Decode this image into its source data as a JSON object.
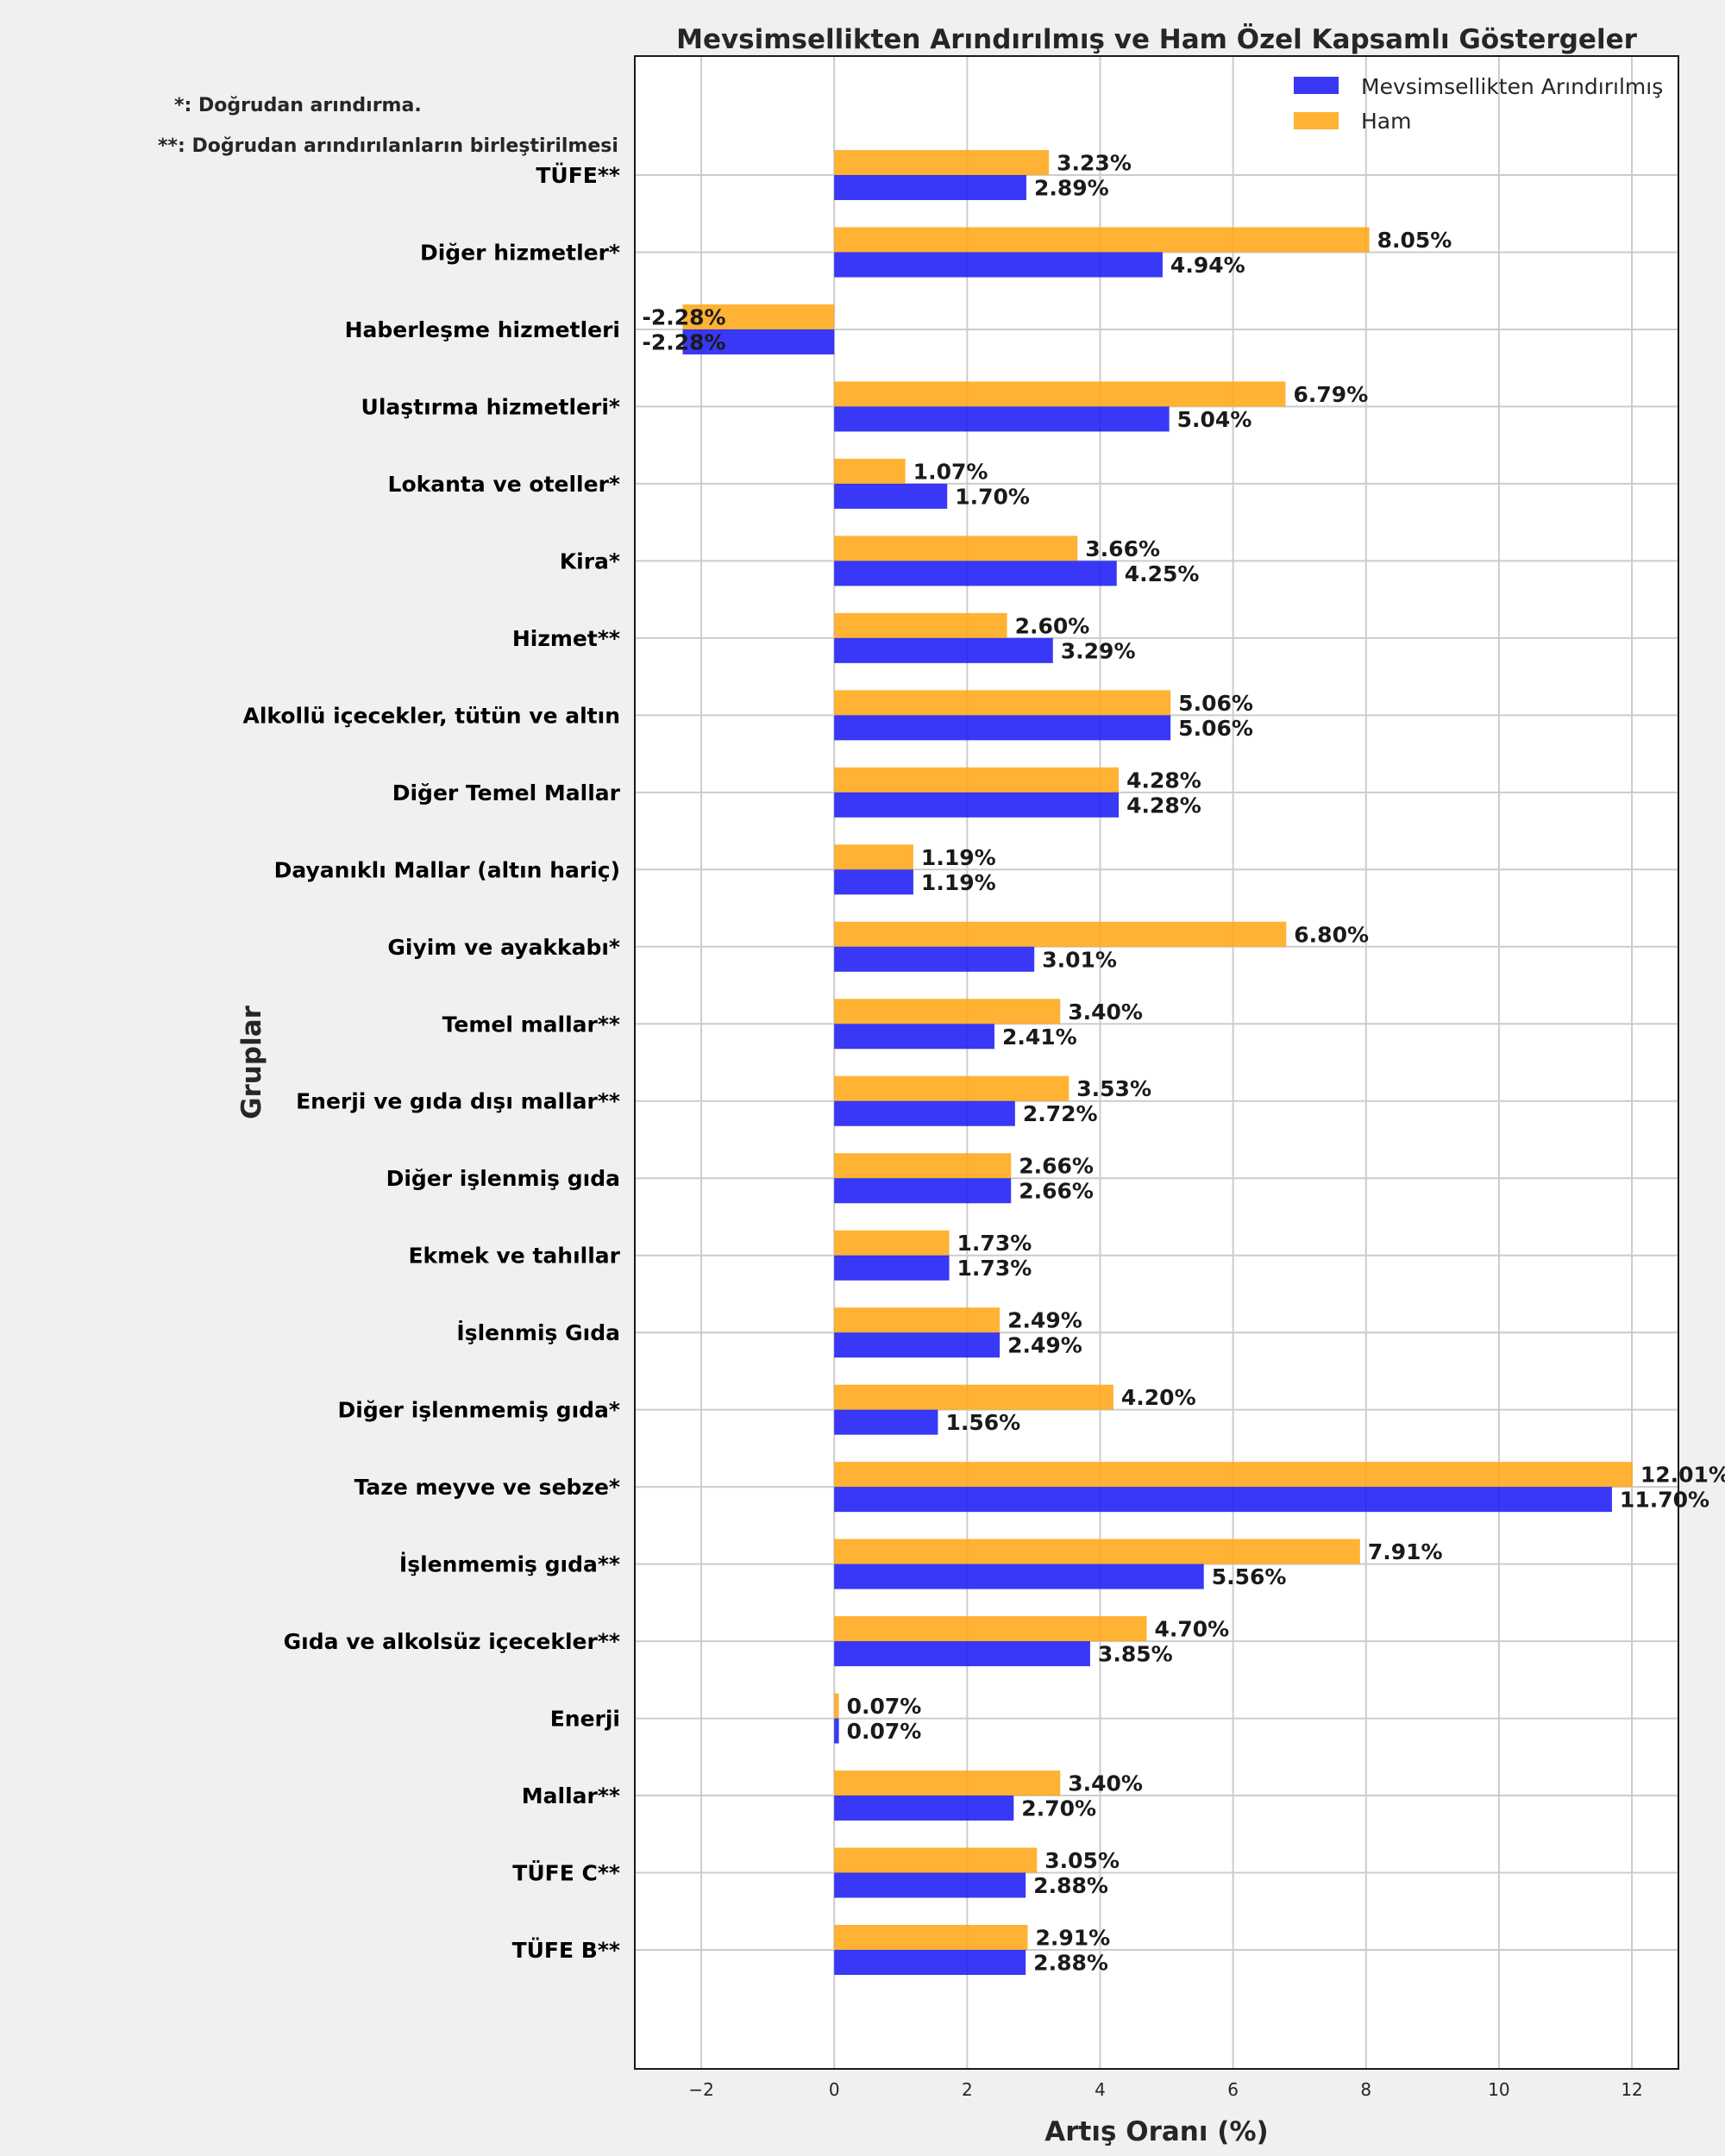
{
  "chart_data": {
    "type": "bar",
    "orientation": "horizontal",
    "title": "Mevsimsellikten Arındırılmış ve Ham Özel Kapsamlı Göstergeler",
    "xlabel": "Artış Oranı (%)",
    "ylabel": "Gruplar",
    "xlim": [
      -3.0,
      12.7
    ],
    "xticks": [
      -2,
      0,
      2,
      4,
      6,
      8,
      10,
      12
    ],
    "xtick_labels": [
      "−2",
      "0",
      "2",
      "4",
      "6",
      "8",
      "10",
      "12"
    ],
    "grid": true,
    "legend_position": "top-right",
    "notes": [
      "*: Doğrudan arındırma.",
      "**: Doğrudan arındırılanların birleştirilmesi"
    ],
    "categories": [
      "TÜFE**",
      "Diğer hizmetler*",
      "Haberleşme hizmetleri",
      "Ulaştırma hizmetleri*",
      "Lokanta ve oteller*",
      "Kira*",
      "Hizmet**",
      "Alkollü içecekler, tütün ve altın",
      "Diğer Temel Mallar",
      "Dayanıklı Mallar (altın hariç)",
      "Giyim ve ayakkabı*",
      "Temel mallar**",
      "Enerji ve gıda dışı mallar**",
      "Diğer işlenmiş gıda",
      "Ekmek ve tahıllar",
      "İşlenmiş Gıda",
      "Diğer işlenmemiş gıda*",
      "Taze meyve ve sebze*",
      "İşlenmemiş gıda**",
      "Gıda ve alkolsüz içecekler**",
      "Enerji",
      "Mallar**",
      "TÜFE C**",
      "TÜFE B**"
    ],
    "highlight_category": "TÜFE**",
    "highlight_color": "#e8141c",
    "series": [
      {
        "name": "Mevsimsellikten Arındırılmış",
        "color": "#1515f5",
        "values": [
          2.89,
          4.94,
          -2.28,
          5.04,
          1.7,
          4.25,
          3.29,
          5.06,
          4.28,
          1.19,
          3.01,
          2.41,
          2.72,
          2.66,
          1.73,
          2.49,
          1.56,
          11.7,
          5.56,
          3.85,
          0.07,
          2.7,
          2.88,
          2.88
        ],
        "labels": [
          "2.89%",
          "4.94%",
          "-2.28%",
          "5.04%",
          "1.70%",
          "4.25%",
          "3.29%",
          "5.06%",
          "4.28%",
          "1.19%",
          "3.01%",
          "2.41%",
          "2.72%",
          "2.66%",
          "1.73%",
          "2.49%",
          "1.56%",
          "11.70%",
          "5.56%",
          "3.85%",
          "0.07%",
          "2.70%",
          "2.88%",
          "2.88%"
        ]
      },
      {
        "name": "Ham",
        "color": "#ffa50f",
        "values": [
          3.23,
          8.05,
          -2.28,
          6.79,
          1.07,
          3.66,
          2.6,
          5.06,
          4.28,
          1.19,
          6.8,
          3.4,
          3.53,
          2.66,
          1.73,
          2.49,
          4.2,
          12.01,
          7.91,
          4.7,
          0.07,
          3.4,
          3.05,
          2.91
        ],
        "labels": [
          "3.23%",
          "8.05%",
          "-2.28%",
          "6.79%",
          "1.07%",
          "3.66%",
          "2.60%",
          "5.06%",
          "4.28%",
          "1.19%",
          "6.80%",
          "3.40%",
          "3.53%",
          "2.66%",
          "1.73%",
          "2.49%",
          "4.20%",
          "12.01%",
          "7.91%",
          "4.70%",
          "0.07%",
          "3.40%",
          "3.05%",
          "2.91%"
        ]
      }
    ]
  }
}
